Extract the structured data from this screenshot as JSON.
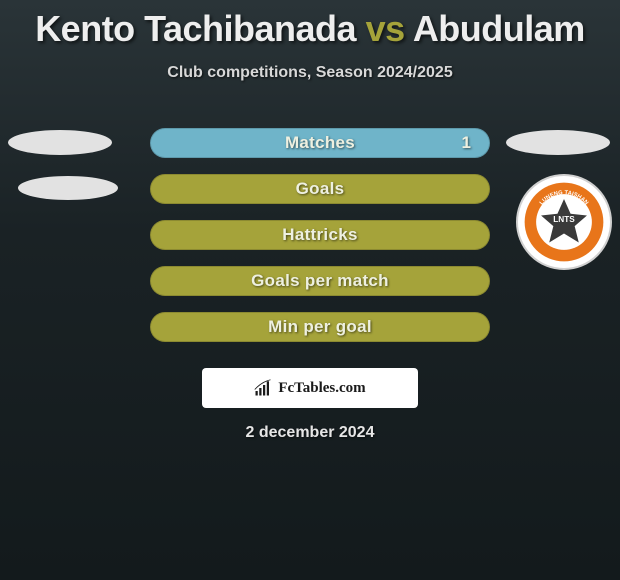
{
  "title": {
    "player1": "Kento Tachibanada",
    "vs": "vs",
    "player2": "Abudulam"
  },
  "subtitle": "Club competitions, Season 2024/2025",
  "colors": {
    "accent_bar": "#6fb4c9",
    "olive_bar": "#a5a33a",
    "badge_orange": "#e8751a",
    "badge_core": "#3a3a3a"
  },
  "stats": [
    {
      "label": "Matches",
      "value": "1",
      "accent": true
    },
    {
      "label": "Goals",
      "value": "",
      "accent": false
    },
    {
      "label": "Hattricks",
      "value": "",
      "accent": false
    },
    {
      "label": "Goals per match",
      "value": "",
      "accent": false
    },
    {
      "label": "Min per goal",
      "value": "",
      "accent": false
    }
  ],
  "footer_brand": "FcTables.com",
  "date": "2 december 2024",
  "badge_text_top": "LUNENG TAISHAN",
  "badge_text_inner": "LNTS"
}
